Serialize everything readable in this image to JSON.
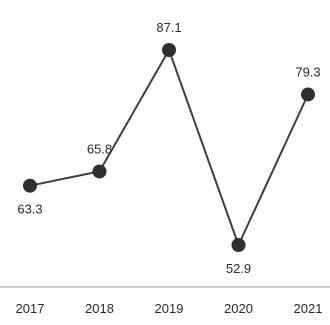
{
  "chart_data": {
    "type": "line",
    "title": "",
    "xlabel": "",
    "ylabel": "",
    "categories": [
      "2017",
      "2018",
      "2019",
      "2020",
      "2021"
    ],
    "series": [
      {
        "values": [
          63.3,
          65.8,
          87.1,
          52.9,
          79.3
        ],
        "value_labels": [
          "63.3",
          "65.8",
          "87.1",
          "52.9",
          "79.3"
        ]
      }
    ],
    "ylim": [
      50,
      90
    ],
    "grid": false,
    "legend": "none",
    "colors": {
      "line": "#3f3f3f",
      "marker": "#2f2f2f",
      "text": "#2b2b2b",
      "axis": "#9b9b9b"
    }
  }
}
